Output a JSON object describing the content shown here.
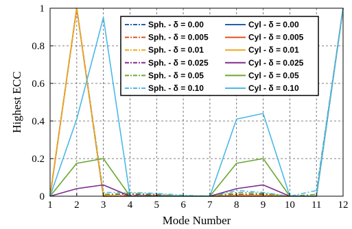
{
  "chart_data": {
    "type": "line",
    "xlabel": "Mode Number",
    "ylabel": "Highest ECC",
    "xlim": [
      1,
      12
    ],
    "ylim": [
      0,
      1
    ],
    "grid": true,
    "legend_position": "top-right",
    "x": [
      1,
      2,
      3,
      4,
      5,
      6,
      7,
      8,
      9,
      10,
      11,
      12
    ],
    "x_ticks": [
      "1",
      "2",
      "3",
      "4",
      "5",
      "6",
      "7",
      "8",
      "9",
      "10",
      "11",
      "12"
    ],
    "y_ticks": [
      "0",
      "0.2",
      "0.4",
      "0.6",
      "0.8",
      "1"
    ],
    "y_tick_values": [
      0,
      0.2,
      0.4,
      0.6,
      0.8,
      1
    ],
    "series": [
      {
        "name": "Sph. - δ = 0.00",
        "color": "#1f5fa8",
        "style": "dashdot",
        "values": [
          0,
          1.0,
          0.0,
          0.0,
          0.0,
          0.0,
          0.0,
          0.0,
          0.0,
          0.0,
          0.0,
          1.0
        ]
      },
      {
        "name": "Sph. - δ = 0.005",
        "color": "#e0501a",
        "style": "dashdot",
        "values": [
          0,
          1.0,
          0.0,
          0.005,
          0.005,
          0.0,
          0.0,
          0.005,
          0.005,
          0.0,
          0.0,
          1.0
        ]
      },
      {
        "name": "Sph. - δ = 0.01",
        "color": "#f0a818",
        "style": "dashdot",
        "values": [
          0,
          1.0,
          0.01,
          0.01,
          0.005,
          0.0,
          0.0,
          0.01,
          0.01,
          0.0,
          0.0,
          1.0
        ]
      },
      {
        "name": "Sph. - δ = 0.025",
        "color": "#7b2a8c",
        "style": "dashdot",
        "values": [
          0,
          1.0,
          0.01,
          0.01,
          0.005,
          0.0,
          0.0,
          0.01,
          0.01,
          0.0,
          0.0,
          1.0
        ]
      },
      {
        "name": "Sph. - δ = 0.05",
        "color": "#6aa62c",
        "style": "dashdot",
        "values": [
          0,
          1.0,
          0.01,
          0.015,
          0.01,
          0.0,
          0.0,
          0.02,
          0.015,
          0.0,
          0.01,
          1.0
        ]
      },
      {
        "name": "Sph. - δ = 0.10",
        "color": "#4ab8e8",
        "style": "dashdot",
        "values": [
          0,
          1.0,
          0.02,
          0.02,
          0.015,
          0.005,
          0.0,
          0.03,
          0.02,
          0.0,
          0.03,
          1.0
        ]
      },
      {
        "name": "Cyl - δ = 0.00",
        "color": "#1f5fa8",
        "style": "solid",
        "values": [
          0,
          1.0,
          0.0,
          0.0,
          0.0,
          0.0,
          0.0,
          0.0,
          0.0,
          0.0,
          0.0,
          1.0
        ]
      },
      {
        "name": "Cyl - δ = 0.005",
        "color": "#e0501a",
        "style": "solid",
        "values": [
          0,
          1.0,
          0.0,
          0.0,
          0.0,
          0.0,
          0.0,
          0.0,
          0.0,
          0.0,
          0.0,
          1.0
        ]
      },
      {
        "name": "Cyl - δ = 0.01",
        "color": "#f0a818",
        "style": "solid",
        "values": [
          0,
          1.0,
          0.005,
          0.0,
          0.0,
          0.0,
          0.0,
          0.005,
          0.005,
          0.0,
          0.0,
          1.0
        ]
      },
      {
        "name": "Cyl - δ = 0.025",
        "color": "#7b2a8c",
        "style": "solid",
        "values": [
          0,
          0.04,
          0.06,
          0.0,
          0.0,
          0.0,
          0.0,
          0.04,
          0.06,
          0.0,
          0.0,
          1.0
        ]
      },
      {
        "name": "Cyl - δ = 0.05",
        "color": "#6aa62c",
        "style": "solid",
        "values": [
          0,
          0.175,
          0.2,
          0.0,
          0.0,
          0.0,
          0.0,
          0.175,
          0.2,
          0.0,
          0.0,
          1.0
        ]
      },
      {
        "name": "Cyl - δ = 0.10",
        "color": "#4ab8e8",
        "style": "solid",
        "values": [
          0,
          0.41,
          0.95,
          0.0,
          0.0,
          0.0,
          0.0,
          0.41,
          0.44,
          0.0,
          0.0,
          1.0
        ]
      }
    ]
  }
}
